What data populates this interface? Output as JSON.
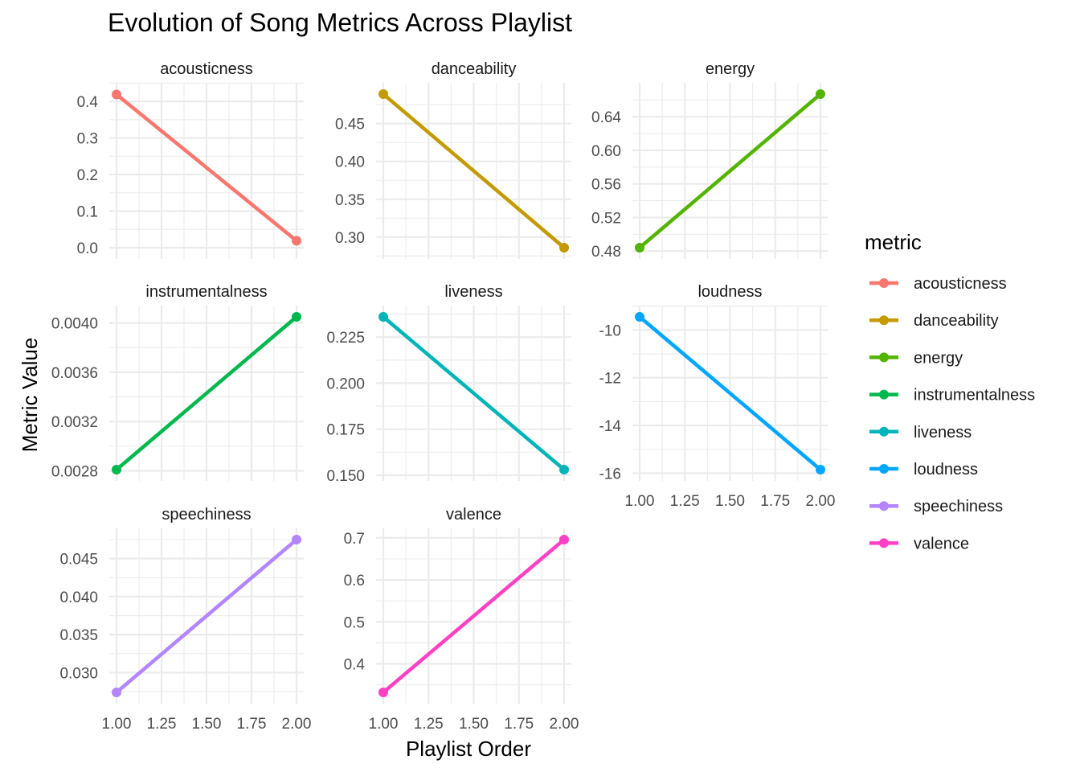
{
  "chart_data": {
    "type": "line",
    "title": "Evolution of Song Metrics Across Playlist",
    "xlabel": "Playlist Order",
    "ylabel": "Metric Value",
    "legend_title": "metric",
    "legend_position": "right",
    "grid": true,
    "x_ticks": [
      "1.00",
      "1.25",
      "1.50",
      "1.75",
      "2.00"
    ],
    "xlim": [
      1.0,
      2.0
    ],
    "facets": [
      {
        "name": "acousticness",
        "color": "#F8766D",
        "x": [
          1,
          2
        ],
        "y": [
          0.419,
          0.019
        ],
        "ylim": [
          0.0,
          0.42
        ],
        "y_ticks": [
          0.0,
          0.1,
          0.2,
          0.3,
          0.4
        ],
        "y_tick_labels": [
          "0.0",
          "0.1",
          "0.2",
          "0.3",
          "0.4"
        ],
        "show_x_ticks": false
      },
      {
        "name": "danceability",
        "color": "#C49A00",
        "x": [
          1,
          2
        ],
        "y": [
          0.489,
          0.286
        ],
        "ylim": [
          0.286,
          0.489
        ],
        "y_ticks": [
          0.3,
          0.35,
          0.4,
          0.45
        ],
        "y_tick_labels": [
          "0.30",
          "0.35",
          "0.40",
          "0.45"
        ],
        "show_x_ticks": false
      },
      {
        "name": "energy",
        "color": "#53B400",
        "x": [
          1,
          2
        ],
        "y": [
          0.484,
          0.667
        ],
        "ylim": [
          0.484,
          0.667
        ],
        "y_ticks": [
          0.48,
          0.52,
          0.56,
          0.6,
          0.64
        ],
        "y_tick_labels": [
          "0.48",
          "0.52",
          "0.56",
          "0.60",
          "0.64"
        ],
        "show_x_ticks": false
      },
      {
        "name": "instrumentalness",
        "color": "#00B84D",
        "x": [
          1,
          2
        ],
        "y": [
          0.00281,
          0.00405
        ],
        "ylim": [
          0.00281,
          0.00405
        ],
        "y_ticks": [
          0.0028,
          0.0032,
          0.0036,
          0.004
        ],
        "y_tick_labels": [
          "0.0028",
          "0.0032",
          "0.0036",
          "0.0040"
        ],
        "show_x_ticks": false
      },
      {
        "name": "liveness",
        "color": "#00B4B8",
        "x": [
          1,
          2
        ],
        "y": [
          0.236,
          0.153
        ],
        "ylim": [
          0.153,
          0.236
        ],
        "y_ticks": [
          0.15,
          0.175,
          0.2,
          0.225
        ],
        "y_tick_labels": [
          "0.150",
          "0.175",
          "0.200",
          "0.225"
        ],
        "show_x_ticks": false
      },
      {
        "name": "loudness",
        "color": "#00A6FF",
        "x": [
          1,
          2
        ],
        "y": [
          -9.45,
          -15.85
        ],
        "ylim": [
          -15.85,
          -9.45
        ],
        "y_ticks": [
          -16,
          -14,
          -12,
          -10
        ],
        "y_tick_labels": [
          "-16",
          "-14",
          "-12",
          "-10"
        ],
        "show_x_ticks": true
      },
      {
        "name": "speechiness",
        "color": "#B385FF",
        "x": [
          1,
          2
        ],
        "y": [
          0.0274,
          0.0475
        ],
        "ylim": [
          0.0274,
          0.0475
        ],
        "y_ticks": [
          0.03,
          0.035,
          0.04,
          0.045
        ],
        "y_tick_labels": [
          "0.030",
          "0.035",
          "0.040",
          "0.045"
        ],
        "show_x_ticks": true
      },
      {
        "name": "valence",
        "color": "#FF40C4",
        "x": [
          1,
          2
        ],
        "y": [
          0.332,
          0.696
        ],
        "ylim": [
          0.332,
          0.696
        ],
        "y_ticks": [
          0.4,
          0.5,
          0.6,
          0.7
        ],
        "y_tick_labels": [
          "0.4",
          "0.5",
          "0.6",
          "0.7"
        ],
        "show_x_ticks": true
      }
    ]
  }
}
